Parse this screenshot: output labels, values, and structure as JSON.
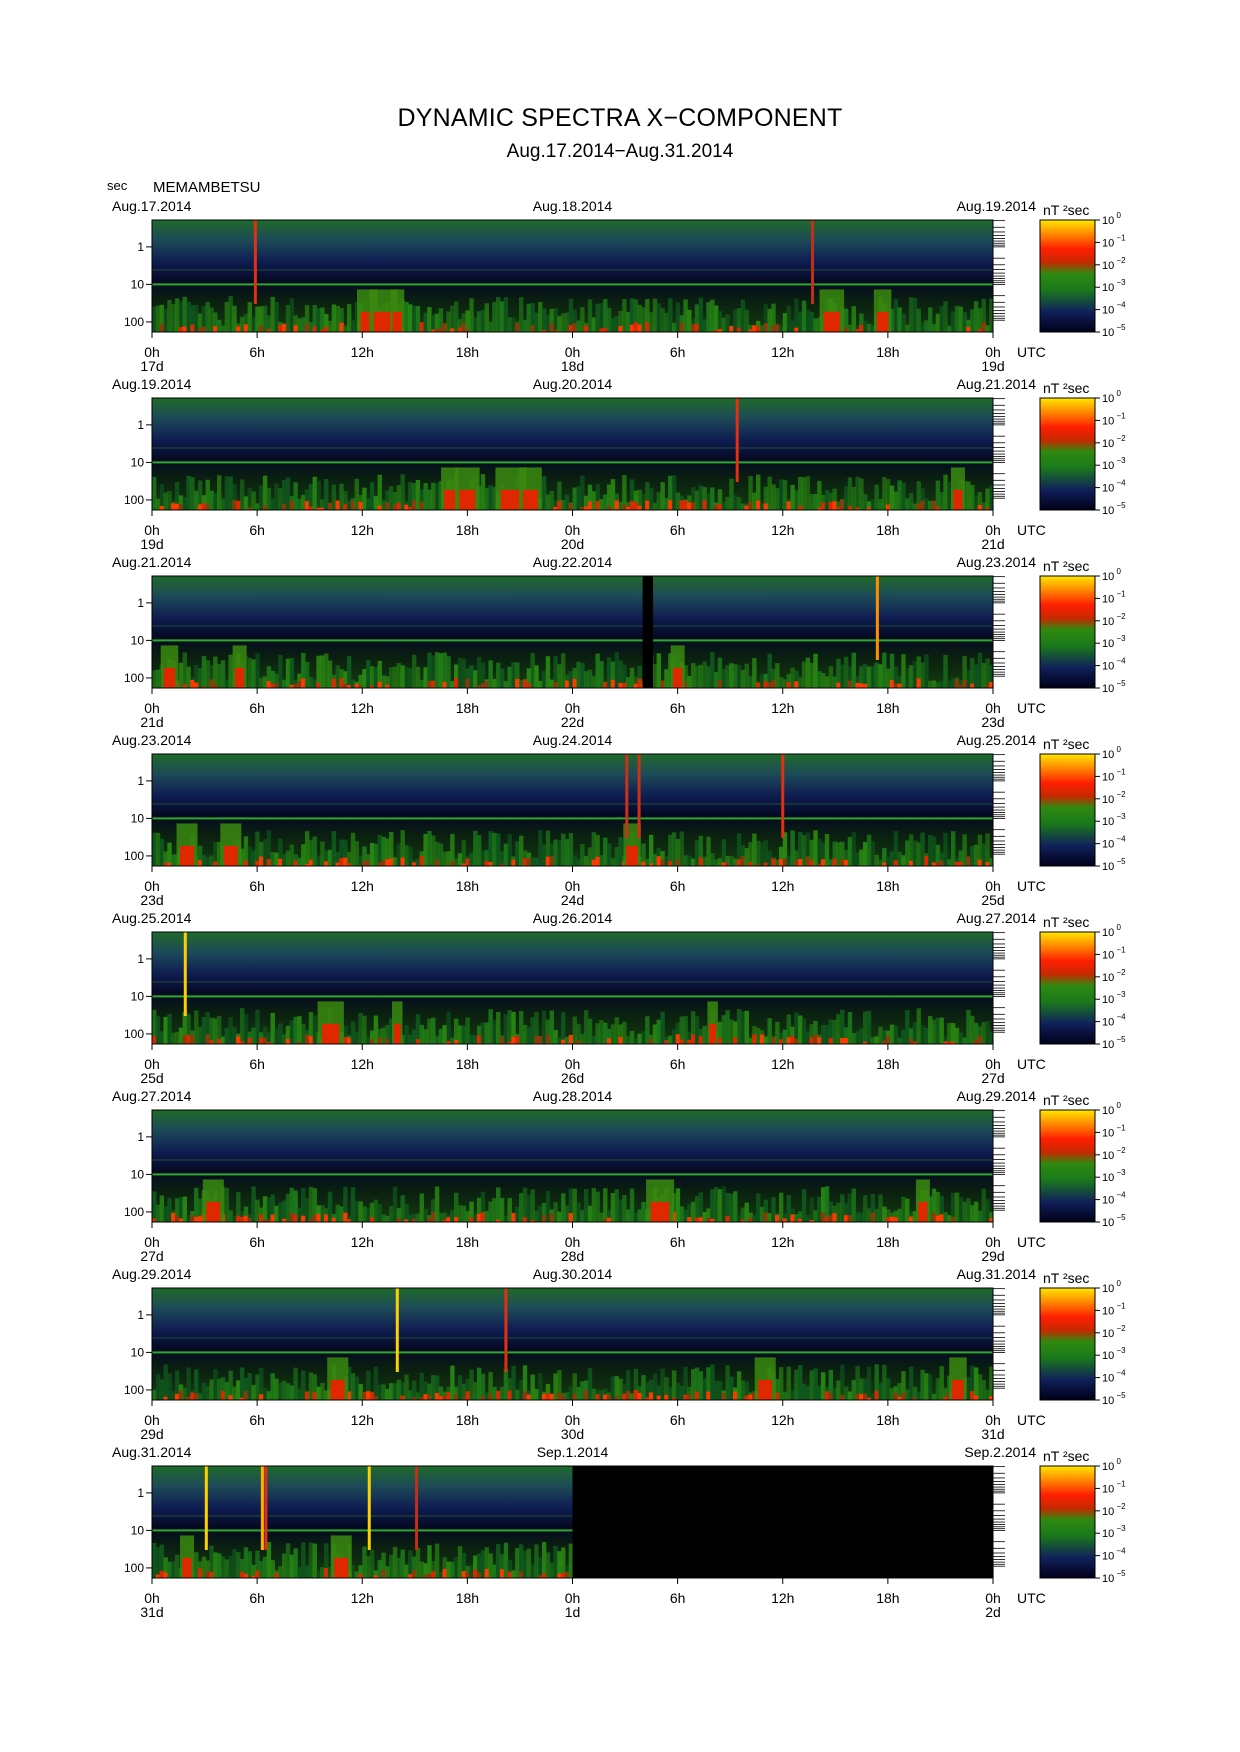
{
  "title": "DYNAMIC SPECTRA X−COMPONENT",
  "subtitle": "Aug.17.2014−Aug.31.2014",
  "station": "MEMAMBETSU",
  "y_unit": "sec",
  "time_zone": "UTC",
  "colorbar_unit": "nT ²sec",
  "colorbar_exponents": [
    "0",
    "−1",
    "−2",
    "−3",
    "−4",
    "−5"
  ],
  "chart_data": {
    "type": "heatmap",
    "xlabel": "UTC",
    "ylabel": "sec",
    "y_scale": "log",
    "y_ticks": [
      "1",
      "10",
      "100"
    ],
    "x_tick_labels": [
      "0h",
      "6h",
      "12h",
      "18h",
      "0h",
      "6h",
      "12h",
      "18h",
      "0h"
    ],
    "colorscale": [
      "#000022",
      "#1a2a7a",
      "#1f7a1f",
      "#ff2200",
      "#ffe600"
    ],
    "color_range": [
      "10^-5",
      "10^0"
    ],
    "panels": [
      {
        "dates": [
          "Aug.17.2014",
          "Aug.18.2014",
          "Aug.19.2014"
        ],
        "days": [
          "17d",
          "18d",
          "19d"
        ],
        "spikes": [
          [
            5.9,
            "#e03010"
          ],
          [
            37.7,
            "#c03018"
          ]
        ],
        "events": [
          [
            12.3,
            1.2
          ],
          [
            13.2,
            1.6
          ],
          [
            14.0,
            0.8
          ],
          [
            38.8,
            1.4
          ],
          [
            41.7,
            1.0
          ]
        ],
        "missing": []
      },
      {
        "dates": [
          "Aug.19.2014",
          "Aug.20.2014",
          "Aug.21.2014"
        ],
        "days": [
          "19d",
          "20d",
          "21d"
        ],
        "spikes": [
          [
            33.4,
            "#e03010"
          ]
        ],
        "events": [
          [
            17.0,
            1.0
          ],
          [
            18.0,
            1.4
          ],
          [
            20.5,
            1.8
          ],
          [
            21.6,
            1.3
          ],
          [
            46.0,
            0.8
          ]
        ],
        "missing": []
      },
      {
        "dates": [
          "Aug.21.2014",
          "Aug.22.2014",
          "Aug.23.2014"
        ],
        "days": [
          "21d",
          "22d",
          "23d"
        ],
        "spikes": [
          [
            41.4,
            "#ff9000"
          ]
        ],
        "events": [
          [
            1.0,
            1.0
          ],
          [
            5.0,
            0.8
          ],
          [
            30.0,
            0.8
          ]
        ],
        "missing": [
          [
            28.0,
            28.6
          ]
        ]
      },
      {
        "dates": [
          "Aug.23.2014",
          "Aug.24.2014",
          "Aug.25.2014"
        ],
        "days": [
          "23d",
          "24d",
          "25d"
        ],
        "spikes": [
          [
            27.1,
            "#d03018"
          ],
          [
            27.8,
            "#d03018"
          ],
          [
            36.0,
            "#e03010"
          ]
        ],
        "events": [
          [
            2.0,
            1.2
          ],
          [
            4.5,
            1.2
          ],
          [
            27.4,
            1.0
          ]
        ],
        "missing": []
      },
      {
        "dates": [
          "Aug.25.2014",
          "Aug.26.2014",
          "Aug.27.2014"
        ],
        "days": [
          "25d",
          "26d",
          "27d"
        ],
        "spikes": [
          [
            1.9,
            "#ffcc00"
          ]
        ],
        "events": [
          [
            10.2,
            1.5
          ],
          [
            14.0,
            0.6
          ],
          [
            32.0,
            0.6
          ]
        ],
        "missing": []
      },
      {
        "dates": [
          "Aug.27.2014",
          "Aug.28.2014",
          "Aug.29.2014"
        ],
        "days": [
          "27d",
          "28d",
          "29d"
        ],
        "spikes": [],
        "events": [
          [
            3.5,
            1.2
          ],
          [
            29.0,
            1.6
          ],
          [
            44.0,
            0.8
          ]
        ],
        "missing": []
      },
      {
        "dates": [
          "Aug.29.2014",
          "Aug.30.2014",
          "Aug.31.2014"
        ],
        "days": [
          "29d",
          "30d",
          "31d"
        ],
        "spikes": [
          [
            14.0,
            "#ffd000"
          ],
          [
            20.2,
            "#e03010"
          ]
        ],
        "events": [
          [
            10.6,
            1.2
          ],
          [
            35.0,
            1.2
          ],
          [
            46.0,
            1.0
          ]
        ],
        "missing": []
      },
      {
        "dates": [
          "Aug.31.2014",
          "Sep.1.2014",
          "Sep.2.2014"
        ],
        "days": [
          "31d",
          "1d",
          "2d"
        ],
        "spikes": [
          [
            3.1,
            "#ffd000"
          ],
          [
            6.3,
            "#ffb000"
          ],
          [
            6.5,
            "#e03010"
          ],
          [
            12.4,
            "#ffd000"
          ],
          [
            15.1,
            "#c03018"
          ]
        ],
        "events": [
          [
            10.8,
            1.2
          ],
          [
            2.0,
            0.8
          ]
        ],
        "missing": [
          [
            24.0,
            48.0
          ]
        ]
      }
    ]
  }
}
